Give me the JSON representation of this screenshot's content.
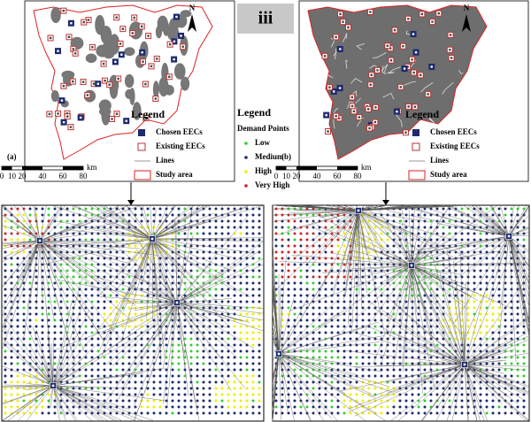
{
  "panel_label": "iii",
  "map_a": {
    "label": "(a)",
    "north": "N",
    "legend": {
      "title": "Legend",
      "items": [
        "Chosen EECs",
        "Existing EECs",
        "Lines",
        "Study area"
      ]
    },
    "scale": {
      "ticks": [
        "0",
        "10",
        "20",
        "40",
        "60",
        "80"
      ],
      "unit": "km"
    }
  },
  "map_b": {
    "label": "(b)",
    "north": "N",
    "legend": {
      "title": "Legend",
      "items": [
        "Chosen EECs",
        "Existing EECs",
        "Lines",
        "Study area"
      ]
    },
    "scale": {
      "ticks": [
        "0",
        "10",
        "20",
        "40",
        "60",
        "80"
      ],
      "unit": "km"
    }
  },
  "demand_legend": {
    "title": "Legend",
    "subtitle": "Demand Points",
    "items": [
      "Low",
      "Medium",
      "High",
      "Very High"
    ]
  }
}
